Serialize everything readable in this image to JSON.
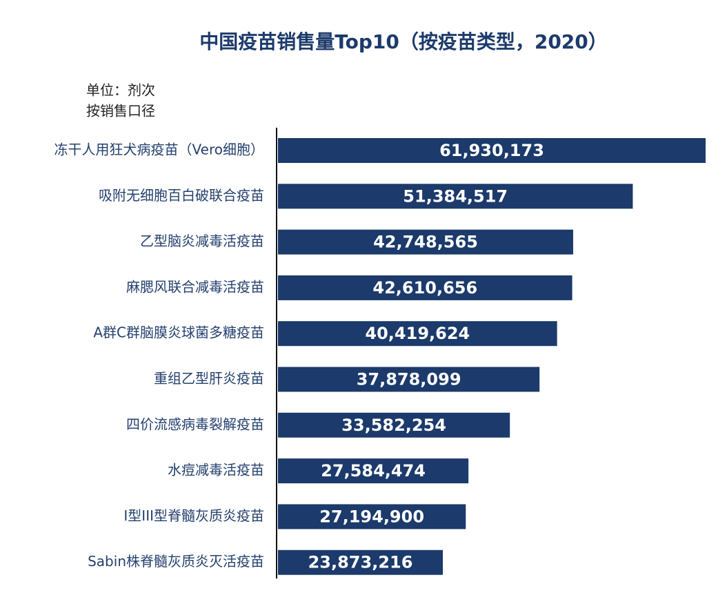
{
  "chart_data": {
    "type": "hbar",
    "title": "中国疫苗销售量Top10（按疫苗类型，2020）",
    "subtitle": [
      "单位：剂次",
      "按销售口径"
    ],
    "categories": [
      "冻干人用狂犬病疫苗（Vero细胞）",
      "吸附无细胞百白破联合疫苗",
      "乙型脑炎减毒活疫苗",
      "麻腮风联合减毒活疫苗",
      "A群C群脑膜炎球菌多糖疫苗",
      "重组乙型肝炎疫苗",
      "四价流感病毒裂解疫苗",
      "水痘减毒活疫苗",
      "I型III型脊髓灰质炎疫苗",
      "Sabin株脊髓灰质炎灭活疫苗"
    ],
    "values": [
      61930173,
      51384517,
      42748565,
      42610656,
      40419624,
      37878099,
      33582254,
      27584474,
      27194900,
      23873216
    ],
    "value_labels": [
      "61,930,173",
      "51,384,517",
      "42,748,565",
      "42,610,656",
      "40,419,624",
      "37,878,099",
      "33,582,254",
      "27,584,474",
      "27,194,900",
      "23,873,216"
    ],
    "color": "#1c3a6b"
  }
}
